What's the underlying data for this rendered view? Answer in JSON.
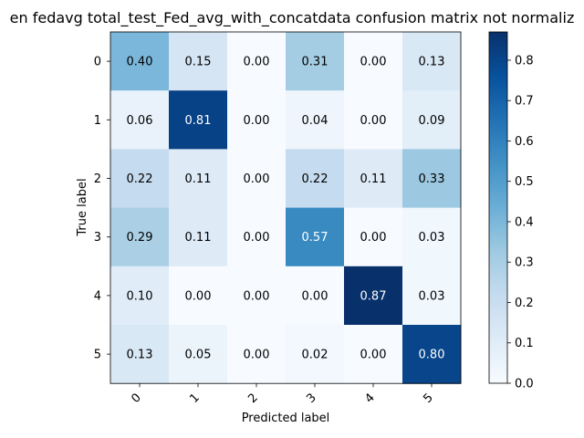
{
  "chart_data": {
    "type": "heatmap",
    "title": "en fedavg total_test_Fed_avg_with_concatdata confusion matrix not normaliz",
    "xlabel": "Predicted label",
    "ylabel": "True label",
    "x_categories": [
      "0",
      "1",
      "2",
      "3",
      "4",
      "5"
    ],
    "y_categories": [
      "0",
      "1",
      "2",
      "3",
      "4",
      "5"
    ],
    "values": [
      [
        0.4,
        0.15,
        0.0,
        0.31,
        0.0,
        0.13
      ],
      [
        0.06,
        0.81,
        0.0,
        0.04,
        0.0,
        0.09
      ],
      [
        0.22,
        0.11,
        0.0,
        0.22,
        0.11,
        0.33
      ],
      [
        0.29,
        0.11,
        0.0,
        0.57,
        0.0,
        0.03
      ],
      [
        0.1,
        0.0,
        0.0,
        0.0,
        0.87,
        0.03
      ],
      [
        0.13,
        0.05,
        0.0,
        0.02,
        0.0,
        0.8
      ]
    ],
    "cell_labels": [
      [
        "0.40",
        "0.15",
        "0.00",
        "0.31",
        "0.00",
        "0.13"
      ],
      [
        "0.06",
        "0.81",
        "0.00",
        "0.04",
        "0.00",
        "0.09"
      ],
      [
        "0.22",
        "0.11",
        "0.00",
        "0.22",
        "0.11",
        "0.33"
      ],
      [
        "0.29",
        "0.11",
        "0.00",
        "0.57",
        "0.00",
        "0.03"
      ],
      [
        "0.10",
        "0.00",
        "0.00",
        "0.00",
        "0.87",
        "0.03"
      ],
      [
        "0.13",
        "0.05",
        "0.00",
        "0.02",
        "0.00",
        "0.80"
      ]
    ],
    "colormap": "Blues",
    "vmin": 0.0,
    "vmax": 0.87,
    "colorbar_ticks": [
      0.0,
      0.1,
      0.2,
      0.3,
      0.4,
      0.5,
      0.6,
      0.7,
      0.8
    ],
    "colorbar_tick_labels": [
      "0.0",
      "0.1",
      "0.2",
      "0.3",
      "0.4",
      "0.5",
      "0.6",
      "0.7",
      "0.8"
    ],
    "text_threshold": 0.435,
    "text_color_light": "#ffffff",
    "text_color_dark": "#000000",
    "grid": false
  }
}
